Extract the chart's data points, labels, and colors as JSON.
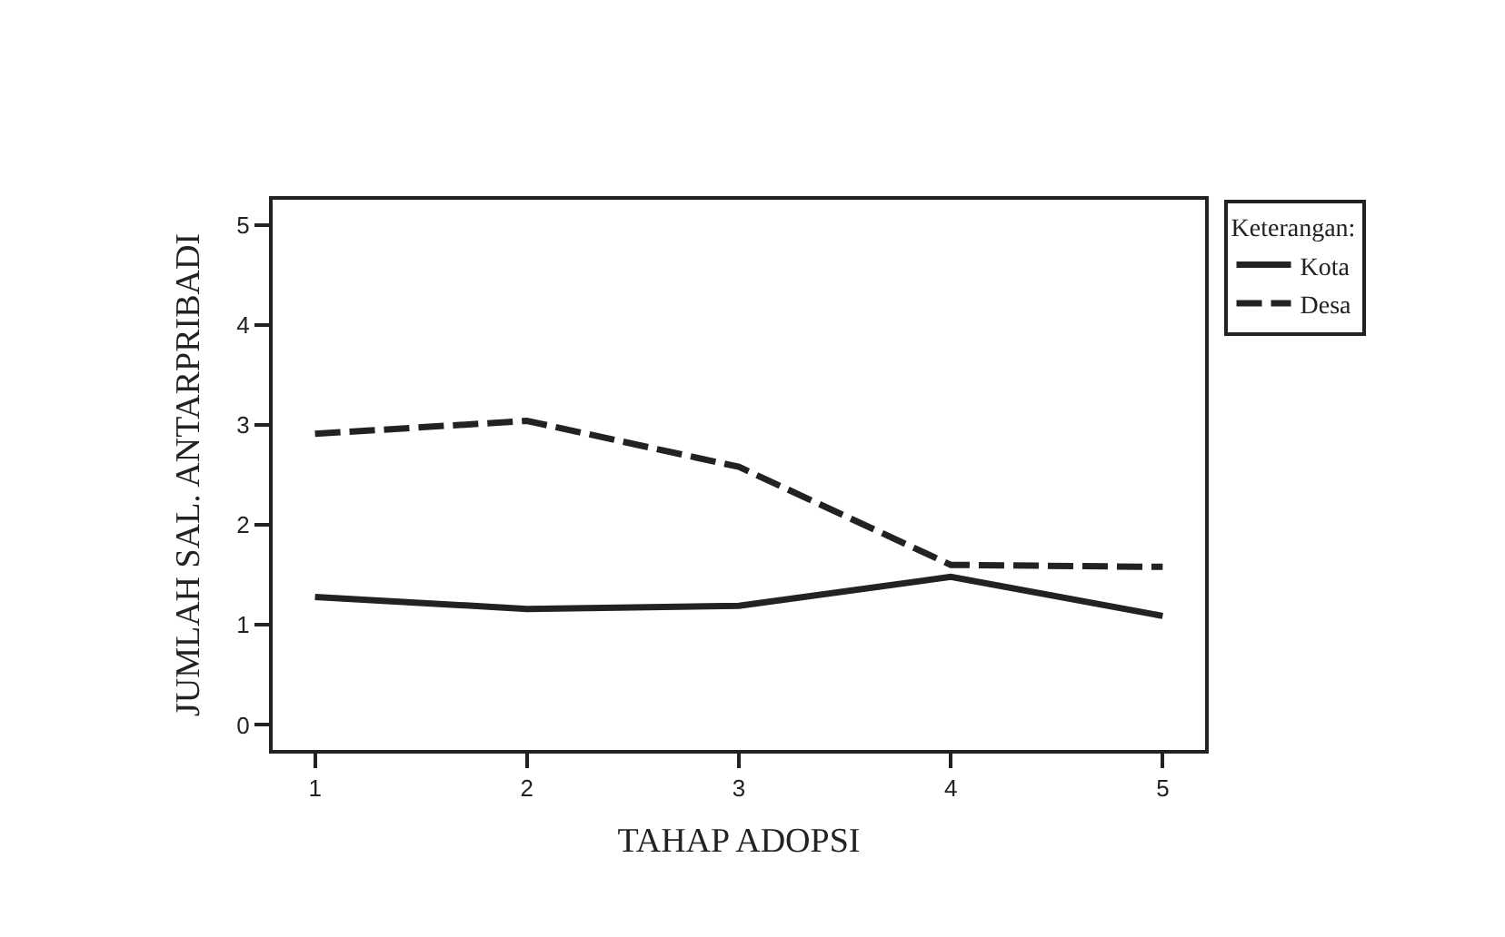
{
  "chart_data": {
    "type": "line",
    "xlabel": "TAHAP ADOPSI",
    "ylabel": "JUMLAH SAL. ANTARPRIBADI",
    "legend_title": "Keterangan:",
    "x": [
      1,
      2,
      3,
      4,
      5
    ],
    "series": [
      {
        "name": "Kota",
        "color": "#222222",
        "line_style": "solid",
        "values": [
          1.28,
          1.16,
          1.19,
          1.48,
          1.09
        ]
      },
      {
        "name": "Desa",
        "color": "#222222",
        "line_style": "dashed",
        "values": [
          2.91,
          3.04,
          2.58,
          1.6,
          1.58
        ]
      }
    ],
    "xlim": [
      0.8,
      5.2
    ],
    "xticks": [
      1,
      2,
      3,
      4,
      5
    ],
    "ylim": [
      -0.25,
      5.25
    ],
    "yticks": [
      0,
      1,
      2,
      3,
      4,
      5
    ],
    "legend": "top right",
    "marker": "none"
  }
}
